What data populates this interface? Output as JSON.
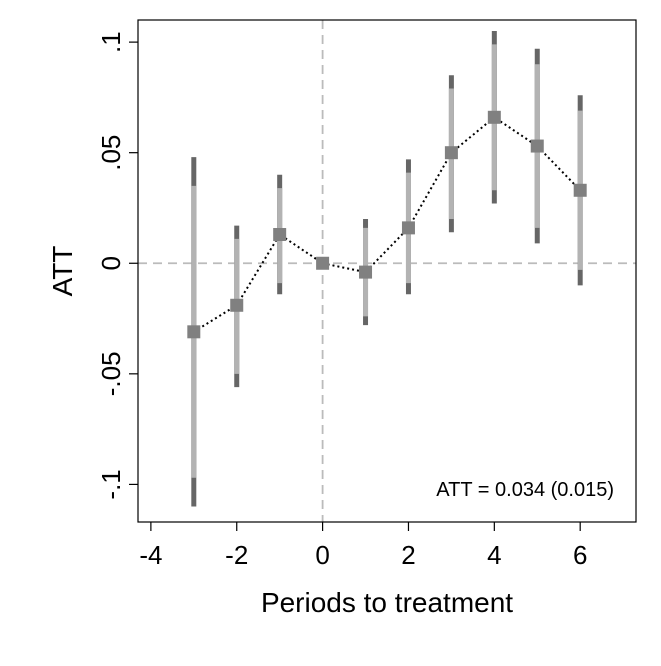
{
  "chart_data": {
    "type": "scatter",
    "xlabel": "Periods to treatment",
    "ylabel": "ATT",
    "xlim": [
      -4.3,
      7.3
    ],
    "ylim": [
      -0.117,
      0.11
    ],
    "x_ticks": [
      -4,
      -2,
      0,
      2,
      4,
      6
    ],
    "x_tick_labels": [
      "-4",
      "-2",
      "0",
      "2",
      "4",
      "6"
    ],
    "y_ticks": [
      -0.1,
      -0.05,
      0,
      0.05,
      0.1
    ],
    "y_tick_labels": [
      "-.1",
      "-.05",
      "0",
      ".05",
      ".1"
    ],
    "reference_lines": {
      "x": 0,
      "y": 0,
      "style": "dashed",
      "color": "#bbbbbb"
    },
    "annotation": "ATT = 0.034 (0.015)",
    "series": [
      {
        "x": [
          -3,
          -2,
          -1,
          0,
          1,
          2,
          3,
          4,
          5,
          6
        ],
        "y": [
          -0.031,
          -0.019,
          0.013,
          0.0,
          -0.004,
          0.016,
          0.05,
          0.066,
          0.053,
          0.033
        ],
        "ci95_low": [
          -0.11,
          -0.056,
          -0.014,
          0.0,
          -0.028,
          -0.014,
          0.014,
          0.027,
          0.009,
          -0.01
        ],
        "ci95_high": [
          0.048,
          0.017,
          0.04,
          0.0,
          0.02,
          0.047,
          0.085,
          0.105,
          0.097,
          0.076
        ],
        "ci90_low": [
          -0.097,
          -0.05,
          -0.009,
          0.0,
          -0.024,
          -0.009,
          0.02,
          0.033,
          0.016,
          -0.003
        ],
        "ci90_high": [
          0.035,
          0.011,
          0.034,
          0.0,
          0.016,
          0.041,
          0.079,
          0.099,
          0.09,
          0.069
        ]
      }
    ],
    "colors": {
      "marker": "#808080",
      "ci_outer": "#666666",
      "ci_inner": "#b3b3b3",
      "connector": "#000000",
      "frame": "#000000"
    }
  }
}
